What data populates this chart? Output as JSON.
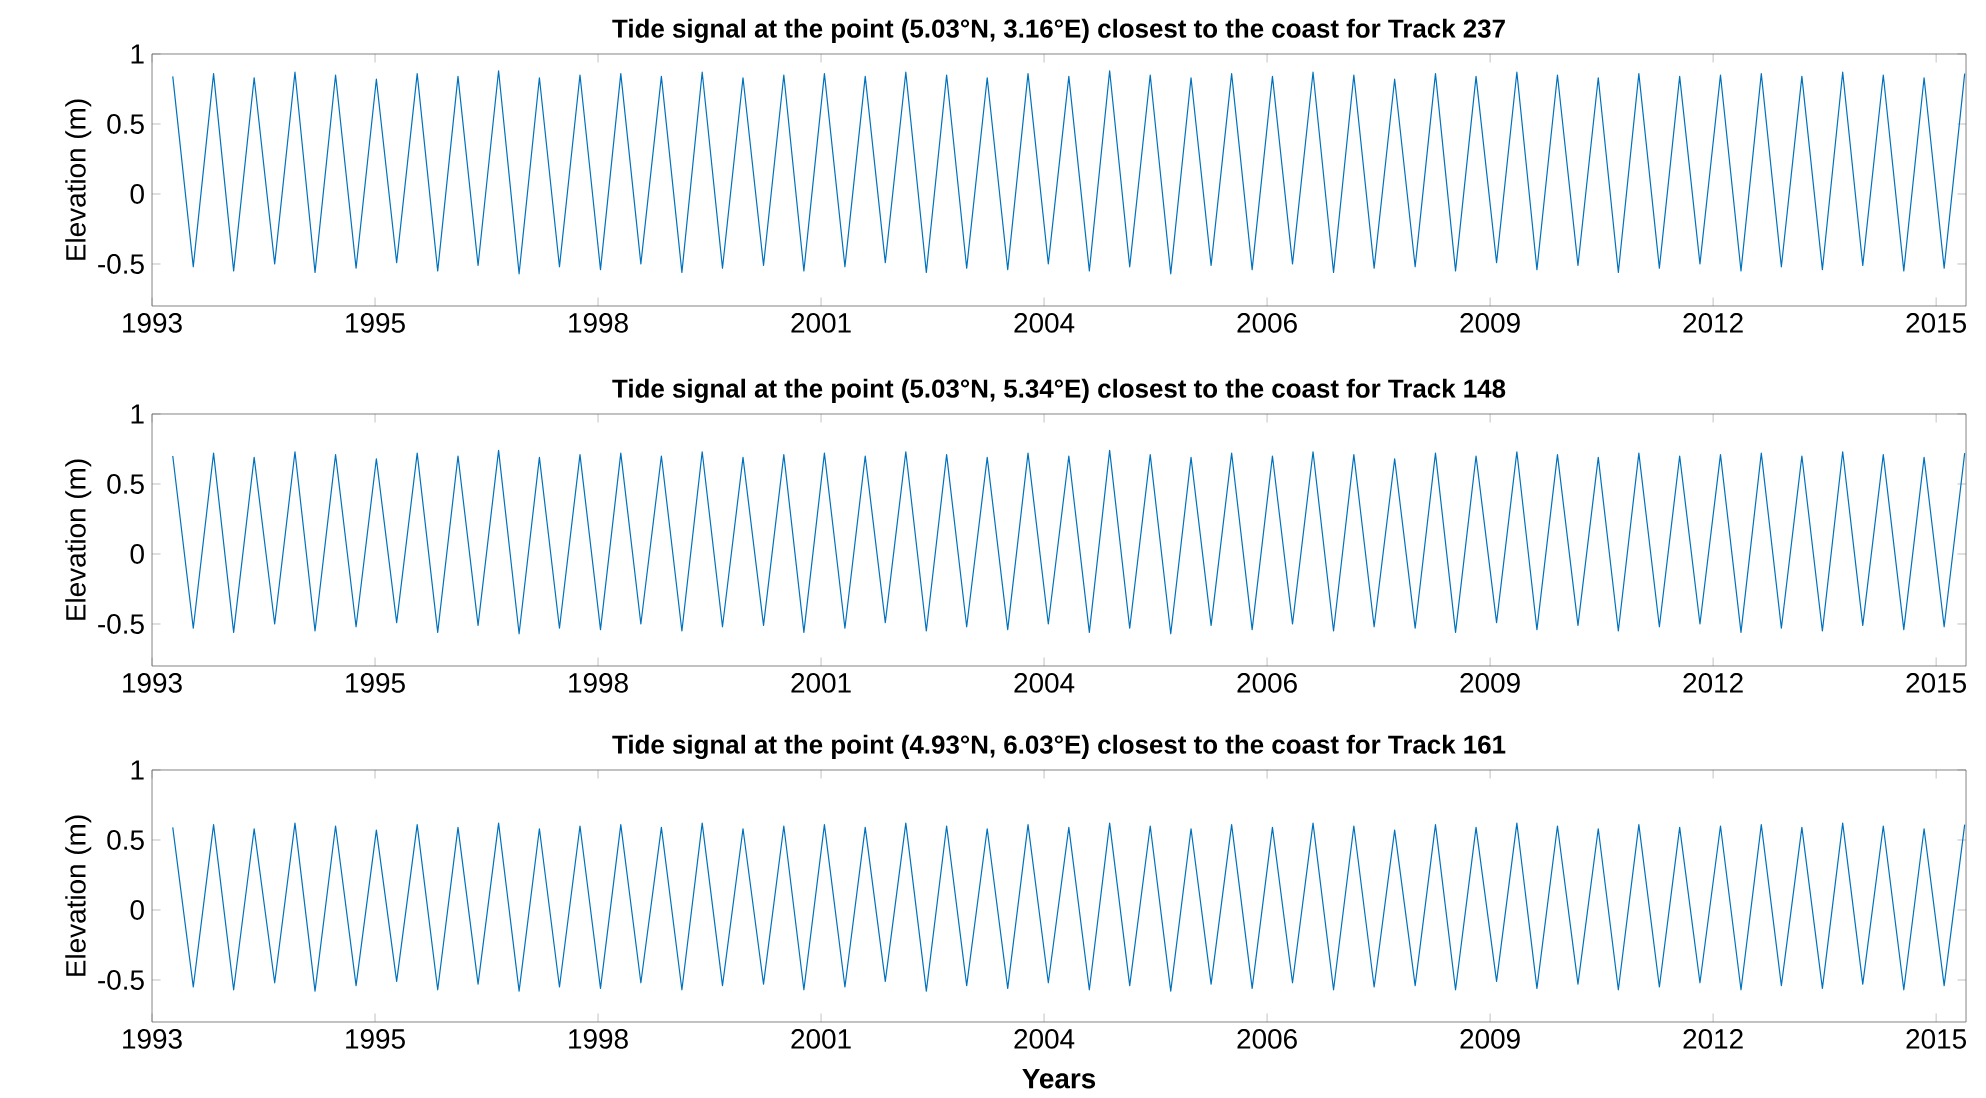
{
  "chart_data": [
    {
      "type": "line",
      "title": "Tide signal at the point (5.03°N, 3.16°E) closest to the coast for Track 237",
      "ylabel": "Elevation (m)",
      "x": [
        "1993-06",
        "1993-09",
        "1993-12",
        "1994-03",
        "1994-06",
        "1994-09",
        "1994-12",
        "1995-03",
        "1995-06",
        "1995-09",
        "1995-12",
        "1996-03",
        "1996-06",
        "1996-09",
        "1996-12",
        "1997-03",
        "1997-06",
        "1997-09",
        "1997-12",
        "1998-03",
        "1998-06",
        "1998-09",
        "1998-12",
        "1999-03",
        "1999-06",
        "1999-09",
        "1999-12",
        "2000-03",
        "2000-06",
        "2000-09",
        "2000-12",
        "2001-03",
        "2001-06",
        "2001-09",
        "2001-12",
        "2002-03",
        "2002-06",
        "2002-09",
        "2002-12",
        "2003-03",
        "2003-06",
        "2003-09",
        "2003-12",
        "2004-03",
        "2004-06",
        "2004-09",
        "2004-12",
        "2005-03",
        "2005-06",
        "2005-09",
        "2005-12",
        "2006-03",
        "2006-06",
        "2006-09",
        "2006-12",
        "2007-03",
        "2007-06",
        "2007-09",
        "2007-12",
        "2008-03",
        "2008-06",
        "2008-09",
        "2008-12",
        "2009-03",
        "2009-06",
        "2009-09",
        "2009-12",
        "2010-03",
        "2010-06",
        "2010-09",
        "2010-12",
        "2011-03",
        "2011-06",
        "2011-09",
        "2011-12",
        "2012-03",
        "2012-06",
        "2012-09",
        "2012-12",
        "2013-03",
        "2013-06",
        "2013-09",
        "2013-12",
        "2014-03",
        "2014-06",
        "2014-09",
        "2014-12",
        "2015-03",
        "2015-06"
      ],
      "series": [
        {
          "color": "#0072bd",
          "values": [
            0.84,
            -0.52,
            0.86,
            -0.55,
            0.83,
            -0.5,
            0.87,
            -0.56,
            0.85,
            -0.53,
            0.82,
            -0.49,
            0.86,
            -0.55,
            0.84,
            -0.51,
            0.88,
            -0.57,
            0.83,
            -0.52,
            0.85,
            -0.54,
            0.86,
            -0.5,
            0.84,
            -0.56,
            0.87,
            -0.53,
            0.83,
            -0.51,
            0.85,
            -0.55,
            0.86,
            -0.52,
            0.84,
            -0.49,
            0.87,
            -0.56,
            0.85,
            -0.53,
            0.83,
            -0.54,
            0.86,
            -0.5,
            0.84,
            -0.55,
            0.88,
            -0.52,
            0.85,
            -0.57,
            0.83,
            -0.51,
            0.86,
            -0.54,
            0.84,
            -0.5,
            0.87,
            -0.56,
            0.85,
            -0.53,
            0.82,
            -0.52,
            0.86,
            -0.55,
            0.84,
            -0.49,
            0.87,
            -0.54,
            0.85,
            -0.51,
            0.83,
            -0.56,
            0.86,
            -0.53,
            0.84,
            -0.5,
            0.85,
            -0.55,
            0.86,
            -0.52,
            0.84,
            -0.54,
            0.87,
            -0.51,
            0.85,
            -0.55,
            0.83,
            -0.53,
            0.86
          ]
        }
      ],
      "xlim": [
        "1993-03-14",
        "2015-06-21"
      ],
      "ylim": [
        -0.8,
        1
      ],
      "xticks": [
        {
          "value": "1993-03-14",
          "label": "1993"
        },
        {
          "value": "1995-12-09",
          "label": "1995"
        },
        {
          "value": "1998-09-04",
          "label": "1998"
        },
        {
          "value": "2001-05-31",
          "label": "2001"
        },
        {
          "value": "2004-02-25",
          "label": "2004"
        },
        {
          "value": "2006-11-21",
          "label": "2006"
        },
        {
          "value": "2009-08-17",
          "label": "2009"
        },
        {
          "value": "2012-05-13",
          "label": "2012"
        },
        {
          "value": "2015-02-07",
          "label": "2015"
        }
      ],
      "yticks": [
        -0.5,
        0,
        0.5,
        1
      ],
      "marker": "none",
      "line_style": "solid"
    },
    {
      "type": "line",
      "title": "Tide signal at the point (5.03°N, 5.34°E) closest to the coast for Track 148",
      "ylabel": "Elevation (m)",
      "x": [
        "1993-06",
        "1993-09",
        "1993-12",
        "1994-03",
        "1994-06",
        "1994-09",
        "1994-12",
        "1995-03",
        "1995-06",
        "1995-09",
        "1995-12",
        "1996-03",
        "1996-06",
        "1996-09",
        "1996-12",
        "1997-03",
        "1997-06",
        "1997-09",
        "1997-12",
        "1998-03",
        "1998-06",
        "1998-09",
        "1998-12",
        "1999-03",
        "1999-06",
        "1999-09",
        "1999-12",
        "2000-03",
        "2000-06",
        "2000-09",
        "2000-12",
        "2001-03",
        "2001-06",
        "2001-09",
        "2001-12",
        "2002-03",
        "2002-06",
        "2002-09",
        "2002-12",
        "2003-03",
        "2003-06",
        "2003-09",
        "2003-12",
        "2004-03",
        "2004-06",
        "2004-09",
        "2004-12",
        "2005-03",
        "2005-06",
        "2005-09",
        "2005-12",
        "2006-03",
        "2006-06",
        "2006-09",
        "2006-12",
        "2007-03",
        "2007-06",
        "2007-09",
        "2007-12",
        "2008-03",
        "2008-06",
        "2008-09",
        "2008-12",
        "2009-03",
        "2009-06",
        "2009-09",
        "2009-12",
        "2010-03",
        "2010-06",
        "2010-09",
        "2010-12",
        "2011-03",
        "2011-06",
        "2011-09",
        "2011-12",
        "2012-03",
        "2012-06",
        "2012-09",
        "2012-12",
        "2013-03",
        "2013-06",
        "2013-09",
        "2013-12",
        "2014-03",
        "2014-06",
        "2014-09",
        "2014-12",
        "2015-03",
        "2015-06"
      ],
      "series": [
        {
          "color": "#0072bd",
          "values": [
            0.7,
            -0.53,
            0.72,
            -0.56,
            0.69,
            -0.5,
            0.73,
            -0.55,
            0.71,
            -0.52,
            0.68,
            -0.49,
            0.72,
            -0.56,
            0.7,
            -0.51,
            0.74,
            -0.57,
            0.69,
            -0.53,
            0.71,
            -0.54,
            0.72,
            -0.5,
            0.7,
            -0.55,
            0.73,
            -0.52,
            0.69,
            -0.51,
            0.71,
            -0.56,
            0.72,
            -0.53,
            0.7,
            -0.49,
            0.73,
            -0.55,
            0.71,
            -0.52,
            0.69,
            -0.54,
            0.72,
            -0.5,
            0.7,
            -0.56,
            0.74,
            -0.53,
            0.71,
            -0.57,
            0.69,
            -0.51,
            0.72,
            -0.54,
            0.7,
            -0.5,
            0.73,
            -0.55,
            0.71,
            -0.52,
            0.68,
            -0.53,
            0.72,
            -0.56,
            0.7,
            -0.49,
            0.73,
            -0.54,
            0.71,
            -0.51,
            0.69,
            -0.55,
            0.72,
            -0.52,
            0.7,
            -0.5,
            0.71,
            -0.56,
            0.72,
            -0.53,
            0.7,
            -0.55,
            0.73,
            -0.51,
            0.71,
            -0.54,
            0.69,
            -0.52,
            0.72
          ]
        }
      ],
      "xlim": [
        "1993-03-14",
        "2015-06-21"
      ],
      "ylim": [
        -0.8,
        1
      ],
      "xticks": [
        {
          "value": "1993-03-14",
          "label": "1993"
        },
        {
          "value": "1995-12-09",
          "label": "1995"
        },
        {
          "value": "1998-09-04",
          "label": "1998"
        },
        {
          "value": "2001-05-31",
          "label": "2001"
        },
        {
          "value": "2004-02-25",
          "label": "2004"
        },
        {
          "value": "2006-11-21",
          "label": "2006"
        },
        {
          "value": "2009-08-17",
          "label": "2009"
        },
        {
          "value": "2012-05-13",
          "label": "2012"
        },
        {
          "value": "2015-02-07",
          "label": "2015"
        }
      ],
      "yticks": [
        -0.5,
        0,
        0.5,
        1
      ],
      "marker": "none",
      "line_style": "solid"
    },
    {
      "type": "line",
      "title": "Tide signal at the point (4.93°N, 6.03°E) closest to the coast for Track 161",
      "xlabel": "Years",
      "ylabel": "Elevation (m)",
      "x": [
        "1993-06",
        "1993-09",
        "1993-12",
        "1994-03",
        "1994-06",
        "1994-09",
        "1994-12",
        "1995-03",
        "1995-06",
        "1995-09",
        "1995-12",
        "1996-03",
        "1996-06",
        "1996-09",
        "1996-12",
        "1997-03",
        "1997-06",
        "1997-09",
        "1997-12",
        "1998-03",
        "1998-06",
        "1998-09",
        "1998-12",
        "1999-03",
        "1999-06",
        "1999-09",
        "1999-12",
        "2000-03",
        "2000-06",
        "2000-09",
        "2000-12",
        "2001-03",
        "2001-06",
        "2001-09",
        "2001-12",
        "2002-03",
        "2002-06",
        "2002-09",
        "2002-12",
        "2003-03",
        "2003-06",
        "2003-09",
        "2003-12",
        "2004-03",
        "2004-06",
        "2004-09",
        "2004-12",
        "2005-03",
        "2005-06",
        "2005-09",
        "2005-12",
        "2006-03",
        "2006-06",
        "2006-09",
        "2006-12",
        "2007-03",
        "2007-06",
        "2007-09",
        "2007-12",
        "2008-03",
        "2008-06",
        "2008-09",
        "2008-12",
        "2009-03",
        "2009-06",
        "2009-09",
        "2009-12",
        "2010-03",
        "2010-06",
        "2010-09",
        "2010-12",
        "2011-03",
        "2011-06",
        "2011-09",
        "2011-12",
        "2012-03",
        "2012-06",
        "2012-09",
        "2012-12",
        "2013-03",
        "2013-06",
        "2013-09",
        "2013-12",
        "2014-03",
        "2014-06",
        "2014-09",
        "2014-12",
        "2015-03",
        "2015-06"
      ],
      "series": [
        {
          "color": "#0072bd",
          "values": [
            0.59,
            -0.55,
            0.61,
            -0.57,
            0.58,
            -0.52,
            0.62,
            -0.58,
            0.6,
            -0.54,
            0.57,
            -0.51,
            0.61,
            -0.57,
            0.59,
            -0.53,
            0.62,
            -0.58,
            0.58,
            -0.55,
            0.6,
            -0.56,
            0.61,
            -0.52,
            0.59,
            -0.57,
            0.62,
            -0.54,
            0.58,
            -0.53,
            0.6,
            -0.57,
            0.61,
            -0.55,
            0.59,
            -0.51,
            0.62,
            -0.58,
            0.6,
            -0.54,
            0.58,
            -0.56,
            0.61,
            -0.52,
            0.59,
            -0.57,
            0.62,
            -0.54,
            0.6,
            -0.58,
            0.58,
            -0.53,
            0.61,
            -0.56,
            0.59,
            -0.52,
            0.62,
            -0.57,
            0.6,
            -0.55,
            0.57,
            -0.54,
            0.61,
            -0.57,
            0.59,
            -0.51,
            0.62,
            -0.56,
            0.6,
            -0.53,
            0.58,
            -0.57,
            0.61,
            -0.55,
            0.59,
            -0.52,
            0.6,
            -0.57,
            0.61,
            -0.54,
            0.59,
            -0.56,
            0.62,
            -0.53,
            0.6,
            -0.57,
            0.58,
            -0.54,
            0.61
          ]
        }
      ],
      "xlim": [
        "1993-03-14",
        "2015-06-21"
      ],
      "ylim": [
        -0.8,
        1
      ],
      "xticks": [
        {
          "value": "1993-03-14",
          "label": "1993"
        },
        {
          "value": "1995-12-09",
          "label": "1995"
        },
        {
          "value": "1998-09-04",
          "label": "1998"
        },
        {
          "value": "2001-05-31",
          "label": "2001"
        },
        {
          "value": "2004-02-25",
          "label": "2004"
        },
        {
          "value": "2006-11-21",
          "label": "2006"
        },
        {
          "value": "2009-08-17",
          "label": "2009"
        },
        {
          "value": "2012-05-13",
          "label": "2012"
        },
        {
          "value": "2015-02-07",
          "label": "2015"
        }
      ],
      "yticks": [
        -0.5,
        0,
        0.5,
        1
      ],
      "marker": "none",
      "line_style": "solid"
    }
  ]
}
